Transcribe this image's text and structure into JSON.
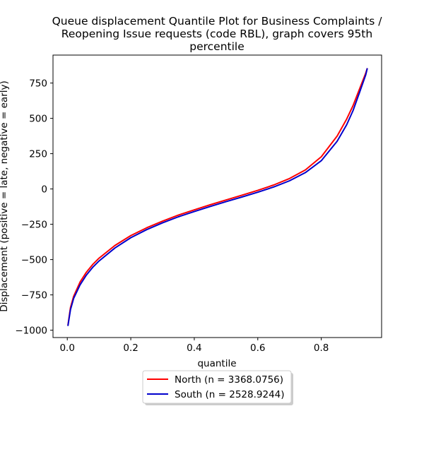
{
  "chart_data": {
    "type": "line",
    "title_lines": [
      "Queue displacement Quantile Plot for Business Complaints /",
      "Reopening Issue  requests (code RBL), graph covers 95th",
      "percentile"
    ],
    "xlabel": "quantile",
    "ylabel": "Displacement (positive = late, negative = early)",
    "xlim": [
      -0.045,
      0.99
    ],
    "ylim": [
      -1052,
      948
    ],
    "xticks": [
      0.0,
      0.2,
      0.4,
      0.6,
      0.8
    ],
    "xtick_labels": [
      "0.0",
      "0.2",
      "0.4",
      "0.6",
      "0.8"
    ],
    "yticks": [
      -1000,
      -750,
      -500,
      -250,
      0,
      250,
      500,
      750
    ],
    "ytick_labels": [
      "−1000",
      "−750",
      "−500",
      "−250",
      "0",
      "250",
      "500",
      "750"
    ],
    "legend_position": "below-center",
    "series": [
      {
        "name": "North (n = 3368.0756)",
        "color": "#ff0000",
        "x": [
          0.002,
          0.01,
          0.02,
          0.04,
          0.06,
          0.08,
          0.1,
          0.15,
          0.2,
          0.25,
          0.3,
          0.35,
          0.4,
          0.45,
          0.5,
          0.55,
          0.6,
          0.65,
          0.7,
          0.75,
          0.8,
          0.85,
          0.88,
          0.9,
          0.92,
          0.94,
          0.945
        ],
        "y": [
          -965,
          -840,
          -760,
          -660,
          -590,
          -535,
          -490,
          -400,
          -330,
          -275,
          -228,
          -185,
          -148,
          -112,
          -78,
          -44,
          -10,
          28,
          74,
          135,
          228,
          375,
          495,
          590,
          705,
          820,
          855
        ]
      },
      {
        "name": "South (n = 2528.9244)",
        "color": "#0000cc",
        "x": [
          0.002,
          0.01,
          0.02,
          0.04,
          0.06,
          0.08,
          0.1,
          0.15,
          0.2,
          0.25,
          0.3,
          0.35,
          0.4,
          0.45,
          0.5,
          0.55,
          0.6,
          0.65,
          0.7,
          0.75,
          0.8,
          0.85,
          0.88,
          0.9,
          0.92,
          0.94,
          0.945
        ],
        "y": [
          -970,
          -855,
          -775,
          -680,
          -610,
          -555,
          -510,
          -418,
          -345,
          -288,
          -240,
          -197,
          -160,
          -124,
          -90,
          -57,
          -23,
          14,
          58,
          116,
          200,
          338,
          455,
          555,
          680,
          808,
          855
        ]
      }
    ]
  }
}
